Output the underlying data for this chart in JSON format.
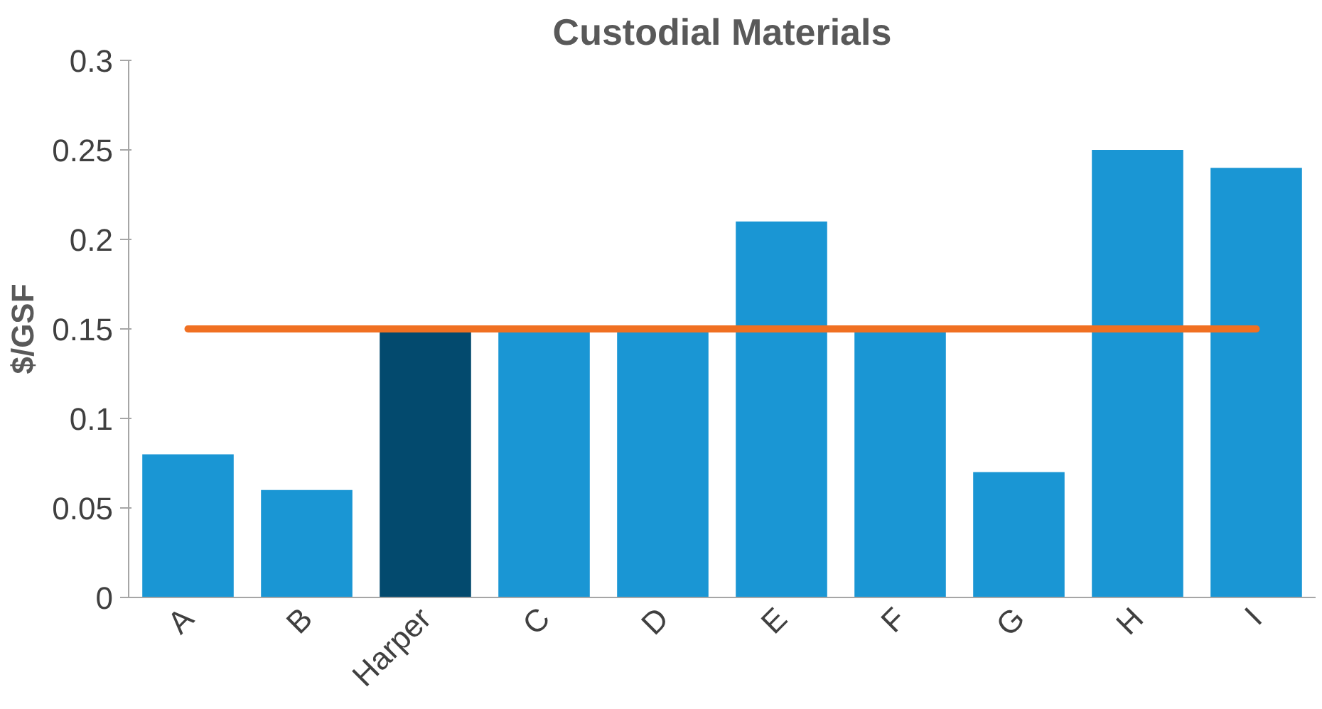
{
  "chart_data": {
    "type": "bar",
    "title": "Custodial Materials",
    "ylabel": "$/GSF",
    "categories": [
      "A",
      "B",
      "Harper",
      "C",
      "D",
      "E",
      "F",
      "G",
      "H",
      "I"
    ],
    "values": [
      0.08,
      0.06,
      0.15,
      0.15,
      0.15,
      0.21,
      0.15,
      0.07,
      0.25,
      0.24
    ],
    "colors": [
      "#1a96d4",
      "#1a96d4",
      "#034a6e",
      "#1a96d4",
      "#1a96d4",
      "#1a96d4",
      "#1a96d4",
      "#1a96d4",
      "#1a96d4",
      "#1a96d4"
    ],
    "ylim": [
      0,
      0.3
    ],
    "yticks": [
      0,
      0.05,
      0.1,
      0.15,
      0.2,
      0.25,
      0.3
    ],
    "grid": false,
    "ref_lines": [
      {
        "axis": "y",
        "value": 0.15,
        "label": null,
        "color": "#f07022"
      }
    ]
  }
}
